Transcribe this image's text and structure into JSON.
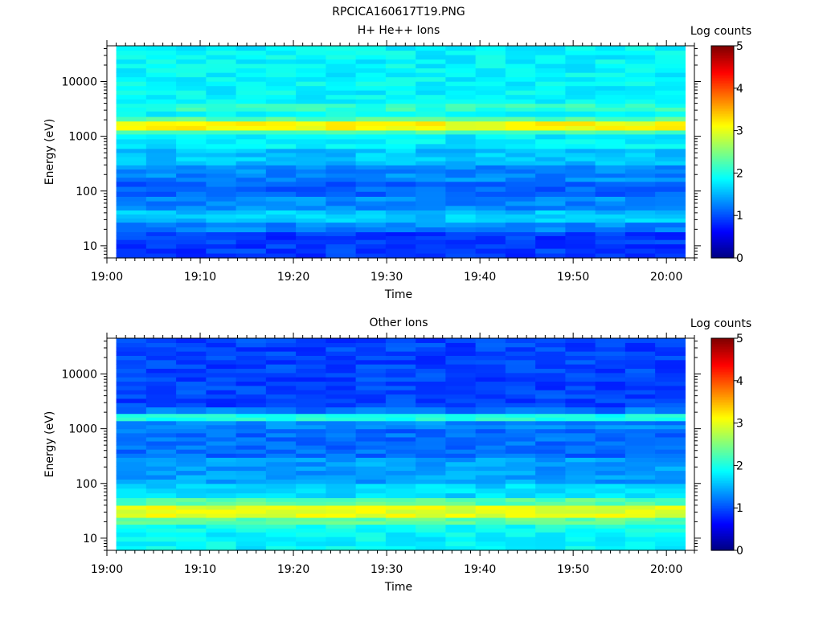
{
  "figure_title": "RPCICA160617T19.PNG",
  "chart_data": [
    {
      "type": "heatmap",
      "title": "H+ He++ Ions",
      "xlabel": "Time",
      "ylabel": "Energy (eV)",
      "yscale": "log",
      "ylim": [
        6,
        45000
      ],
      "xlim": [
        "19:00",
        "20:03"
      ],
      "data_x_range": [
        "19:01",
        "20:02"
      ],
      "x_ticks": [
        "19:00",
        "19:10",
        "19:20",
        "19:30",
        "19:40",
        "19:50",
        "20:00"
      ],
      "y_ticks": [
        10,
        100,
        1000,
        10000
      ],
      "y_tick_labels": [
        "10",
        "100",
        "1000",
        "10000"
      ],
      "colorbar": {
        "label": "Log counts",
        "range": [
          0,
          5
        ],
        "ticks": [
          "0",
          "1",
          "2",
          "3",
          "4",
          "5"
        ],
        "colormap": "jet"
      },
      "bands": [
        {
          "e_min": 6,
          "e_max": 9,
          "log_counts": 0.9
        },
        {
          "e_min": 9,
          "e_max": 13,
          "log_counts": 0.9
        },
        {
          "e_min": 13,
          "e_max": 18,
          "log_counts": 0.9
        },
        {
          "e_min": 18,
          "e_max": 27,
          "log_counts": 1.3
        },
        {
          "e_min": 27,
          "e_max": 45,
          "log_counts": 1.6
        },
        {
          "e_min": 45,
          "e_max": 80,
          "log_counts": 1.3
        },
        {
          "e_min": 80,
          "e_max": 150,
          "log_counts": 1.1
        },
        {
          "e_min": 150,
          "e_max": 300,
          "log_counts": 1.3
        },
        {
          "e_min": 300,
          "e_max": 600,
          "log_counts": 1.6
        },
        {
          "e_min": 600,
          "e_max": 1100,
          "log_counts": 1.8
        },
        {
          "e_min": 1100,
          "e_max": 1300,
          "log_counts": 2.3
        },
        {
          "e_min": 1300,
          "e_max": 1900,
          "log_counts": 3.1
        },
        {
          "e_min": 1900,
          "e_max": 2300,
          "log_counts": 2.3
        },
        {
          "e_min": 2300,
          "e_max": 2900,
          "log_counts": 1.9
        },
        {
          "e_min": 2900,
          "e_max": 4000,
          "log_counts": 2.1
        },
        {
          "e_min": 4000,
          "e_max": 45000,
          "log_counts": 1.85
        }
      ]
    },
    {
      "type": "heatmap",
      "title": "Other Ions",
      "xlabel": "Time",
      "ylabel": "Energy (eV)",
      "yscale": "log",
      "ylim": [
        6,
        45000
      ],
      "xlim": [
        "19:00",
        "20:03"
      ],
      "data_x_range": [
        "19:01",
        "20:02"
      ],
      "x_ticks": [
        "19:00",
        "19:10",
        "19:20",
        "19:30",
        "19:40",
        "19:50",
        "20:00"
      ],
      "y_ticks": [
        10,
        100,
        1000,
        10000
      ],
      "y_tick_labels": [
        "10",
        "100",
        "1000",
        "10000"
      ],
      "colorbar": {
        "label": "Log counts",
        "range": [
          0,
          5
        ],
        "ticks": [
          "0",
          "1",
          "2",
          "3",
          "4",
          "5"
        ],
        "colormap": "jet"
      },
      "bands": [
        {
          "e_min": 6,
          "e_max": 13,
          "log_counts": 1.85
        },
        {
          "e_min": 13,
          "e_max": 18,
          "log_counts": 1.95
        },
        {
          "e_min": 18,
          "e_max": 24,
          "log_counts": 2.3
        },
        {
          "e_min": 24,
          "e_max": 40,
          "log_counts": 3.0
        },
        {
          "e_min": 40,
          "e_max": 55,
          "log_counts": 2.3
        },
        {
          "e_min": 55,
          "e_max": 100,
          "log_counts": 1.7
        },
        {
          "e_min": 100,
          "e_max": 300,
          "log_counts": 1.4
        },
        {
          "e_min": 300,
          "e_max": 1000,
          "log_counts": 1.15
        },
        {
          "e_min": 1000,
          "e_max": 1400,
          "log_counts": 1.3
        },
        {
          "e_min": 1400,
          "e_max": 1900,
          "log_counts": 2.0
        },
        {
          "e_min": 1900,
          "e_max": 2500,
          "log_counts": 1.2
        },
        {
          "e_min": 2500,
          "e_max": 45000,
          "log_counts": 0.95
        }
      ]
    }
  ]
}
